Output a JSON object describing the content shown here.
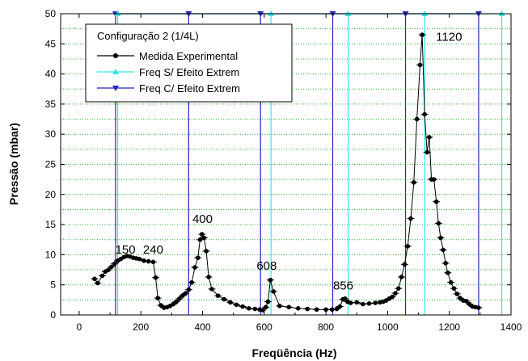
{
  "chart_data": {
    "type": "line",
    "title": "",
    "xlabel": "Freqüência (Hz)",
    "ylabel": "Pressão (mbar)",
    "xlim": [
      -60,
      1400
    ],
    "ylim": [
      0,
      50
    ],
    "x_ticks": [
      0,
      200,
      400,
      600,
      800,
      1000,
      1200,
      1400
    ],
    "y_ticks": [
      0,
      5,
      10,
      15,
      20,
      25,
      30,
      35,
      40,
      45,
      50
    ],
    "grid": "horizontal dotted",
    "legend": {
      "title": "Configuração 2 (1/4L)",
      "placement": "top-left"
    },
    "colors": {
      "measured": "#000000",
      "freq_without": "#33e6e6",
      "freq_with": "#2424b8",
      "grid": "#33b333"
    },
    "series": [
      {
        "name": "Medida Experimental",
        "marker": "circle",
        "x": [
          50,
          60,
          75,
          85,
          95,
          105,
          115,
          125,
          135,
          145,
          155,
          165,
          175,
          185,
          195,
          210,
          225,
          240,
          248,
          255,
          265,
          275,
          285,
          295,
          305,
          315,
          325,
          335,
          345,
          355,
          365,
          375,
          385,
          392,
          398,
          405,
          412,
          420,
          430,
          450,
          470,
          490,
          510,
          530,
          550,
          570,
          585,
          595,
          605,
          612,
          620,
          630,
          650,
          680,
          710,
          740,
          770,
          800,
          820,
          835,
          845,
          855,
          862,
          870,
          880,
          900,
          920,
          940,
          960,
          975,
          985,
          995,
          1005,
          1015,
          1025,
          1035,
          1045,
          1055,
          1065,
          1075,
          1085,
          1095,
          1105,
          1112,
          1120,
          1128,
          1135,
          1142,
          1150,
          1158,
          1165,
          1172,
          1180,
          1188,
          1195,
          1205,
          1215,
          1225,
          1235,
          1245,
          1255,
          1265,
          1275,
          1285,
          1295
        ],
        "values": [
          6,
          5.3,
          6.5,
          7.2,
          7.5,
          8,
          8.5,
          9,
          9.3,
          9.6,
          9.8,
          9.7,
          9.5,
          9.4,
          9.3,
          9,
          8.9,
          8.8,
          6.2,
          2.8,
          1.6,
          1.2,
          1.3,
          1.5,
          1.8,
          2.2,
          2.7,
          3.2,
          3.6,
          4.2,
          5.4,
          7.9,
          9.5,
          12.5,
          13.4,
          12.8,
          10.6,
          6.3,
          4.3,
          3.2,
          2.6,
          2.1,
          1.7,
          1.4,
          1.1,
          1,
          0.9,
          0.8,
          1.3,
          2.2,
          5.8,
          3.9,
          1.5,
          1.3,
          1.1,
          1,
          0.9,
          0.9,
          0.9,
          1,
          1.4,
          2.6,
          2.7,
          2.2,
          2,
          2.1,
          1.8,
          1.9,
          2,
          2.1,
          2.2,
          2.4,
          2.7,
          3,
          3.6,
          4.4,
          6.3,
          8.4,
          11.4,
          16,
          22,
          32.5,
          41.5,
          46.5,
          33.3,
          27,
          29.5,
          22.5,
          22.5,
          18.8,
          15.2,
          12.8,
          10.8,
          8.6,
          7,
          5.4,
          4.4,
          3.5,
          2.8,
          2.4,
          2.3,
          1.8,
          1.4,
          1.3,
          1.2
        ]
      },
      {
        "name": "Freq S/ Efeito Extrem",
        "marker": "triangle-up",
        "x": [
          125,
          622,
          872,
          1120,
          1370
        ],
        "values": [
          50,
          50,
          50,
          50,
          50
        ]
      },
      {
        "name": "Freq C/ Efeito Extrem",
        "marker": "triangle-down",
        "x": [
          118,
          355,
          588,
          822,
          1058,
          1295
        ],
        "values": [
          50,
          50,
          50,
          50,
          50,
          50
        ]
      }
    ],
    "annotations": [
      {
        "text": "150",
        "x": 150,
        "y": 10.2
      },
      {
        "text": "240",
        "x": 240,
        "y": 10.2
      },
      {
        "text": "400",
        "x": 400,
        "y": 15.3
      },
      {
        "text": "608",
        "x": 608,
        "y": 7.5
      },
      {
        "text": "856",
        "x": 856,
        "y": 4.2
      },
      {
        "text": "1120",
        "x": 1120,
        "y": 45.5
      }
    ]
  }
}
